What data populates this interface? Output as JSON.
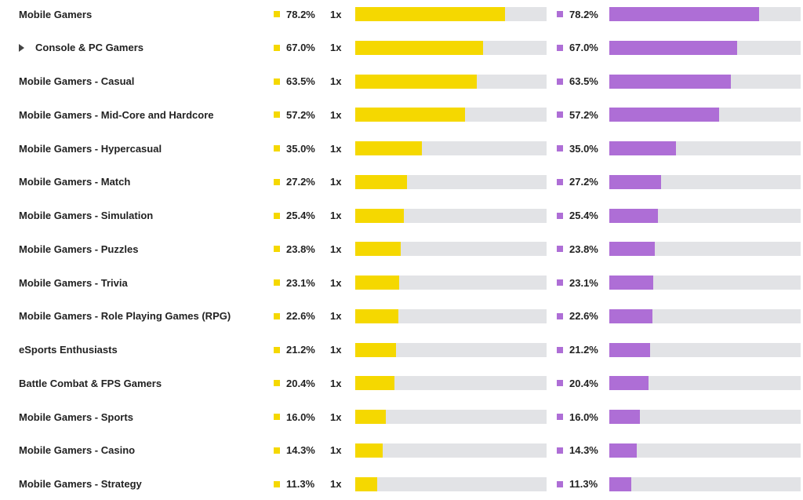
{
  "colors": {
    "series_a": "#f5d800",
    "series_b": "#ae6ed6"
  },
  "rows": [
    {
      "label": "Mobile Gamers",
      "expandable": false,
      "a_value": 78.2,
      "a_text": "78.2%",
      "multiplier": "1x",
      "b_value": 78.2,
      "b_text": "78.2%"
    },
    {
      "label": "Console & PC Gamers",
      "expandable": true,
      "a_value": 67.0,
      "a_text": "67.0%",
      "multiplier": "1x",
      "b_value": 67.0,
      "b_text": "67.0%"
    },
    {
      "label": "Mobile Gamers - Casual",
      "expandable": false,
      "a_value": 63.5,
      "a_text": "63.5%",
      "multiplier": "1x",
      "b_value": 63.5,
      "b_text": "63.5%"
    },
    {
      "label": "Mobile Gamers - Mid-Core and Hardcore",
      "expandable": false,
      "a_value": 57.2,
      "a_text": "57.2%",
      "multiplier": "1x",
      "b_value": 57.2,
      "b_text": "57.2%"
    },
    {
      "label": "Mobile Gamers - Hypercasual",
      "expandable": false,
      "a_value": 35.0,
      "a_text": "35.0%",
      "multiplier": "1x",
      "b_value": 35.0,
      "b_text": "35.0%"
    },
    {
      "label": "Mobile Gamers - Match",
      "expandable": false,
      "a_value": 27.2,
      "a_text": "27.2%",
      "multiplier": "1x",
      "b_value": 27.2,
      "b_text": "27.2%"
    },
    {
      "label": "Mobile Gamers - Simulation",
      "expandable": false,
      "a_value": 25.4,
      "a_text": "25.4%",
      "multiplier": "1x",
      "b_value": 25.4,
      "b_text": "25.4%"
    },
    {
      "label": "Mobile Gamers - Puzzles",
      "expandable": false,
      "a_value": 23.8,
      "a_text": "23.8%",
      "multiplier": "1x",
      "b_value": 23.8,
      "b_text": "23.8%"
    },
    {
      "label": "Mobile Gamers - Trivia",
      "expandable": false,
      "a_value": 23.1,
      "a_text": "23.1%",
      "multiplier": "1x",
      "b_value": 23.1,
      "b_text": "23.1%"
    },
    {
      "label": "Mobile Gamers - Role Playing Games (RPG)",
      "expandable": false,
      "a_value": 22.6,
      "a_text": "22.6%",
      "multiplier": "1x",
      "b_value": 22.6,
      "b_text": "22.6%"
    },
    {
      "label": "eSports Enthusiasts",
      "expandable": false,
      "a_value": 21.2,
      "a_text": "21.2%",
      "multiplier": "1x",
      "b_value": 21.2,
      "b_text": "21.2%"
    },
    {
      "label": "Battle Combat & FPS Gamers",
      "expandable": false,
      "a_value": 20.4,
      "a_text": "20.4%",
      "multiplier": "1x",
      "b_value": 20.4,
      "b_text": "20.4%"
    },
    {
      "label": "Mobile Gamers - Sports",
      "expandable": false,
      "a_value": 16.0,
      "a_text": "16.0%",
      "multiplier": "1x",
      "b_value": 16.0,
      "b_text": "16.0%"
    },
    {
      "label": "Mobile Gamers - Casino",
      "expandable": false,
      "a_value": 14.3,
      "a_text": "14.3%",
      "multiplier": "1x",
      "b_value": 14.3,
      "b_text": "14.3%"
    },
    {
      "label": "Mobile Gamers - Strategy",
      "expandable": false,
      "a_value": 11.3,
      "a_text": "11.3%",
      "multiplier": "1x",
      "b_value": 11.3,
      "b_text": "11.3%"
    }
  ]
}
